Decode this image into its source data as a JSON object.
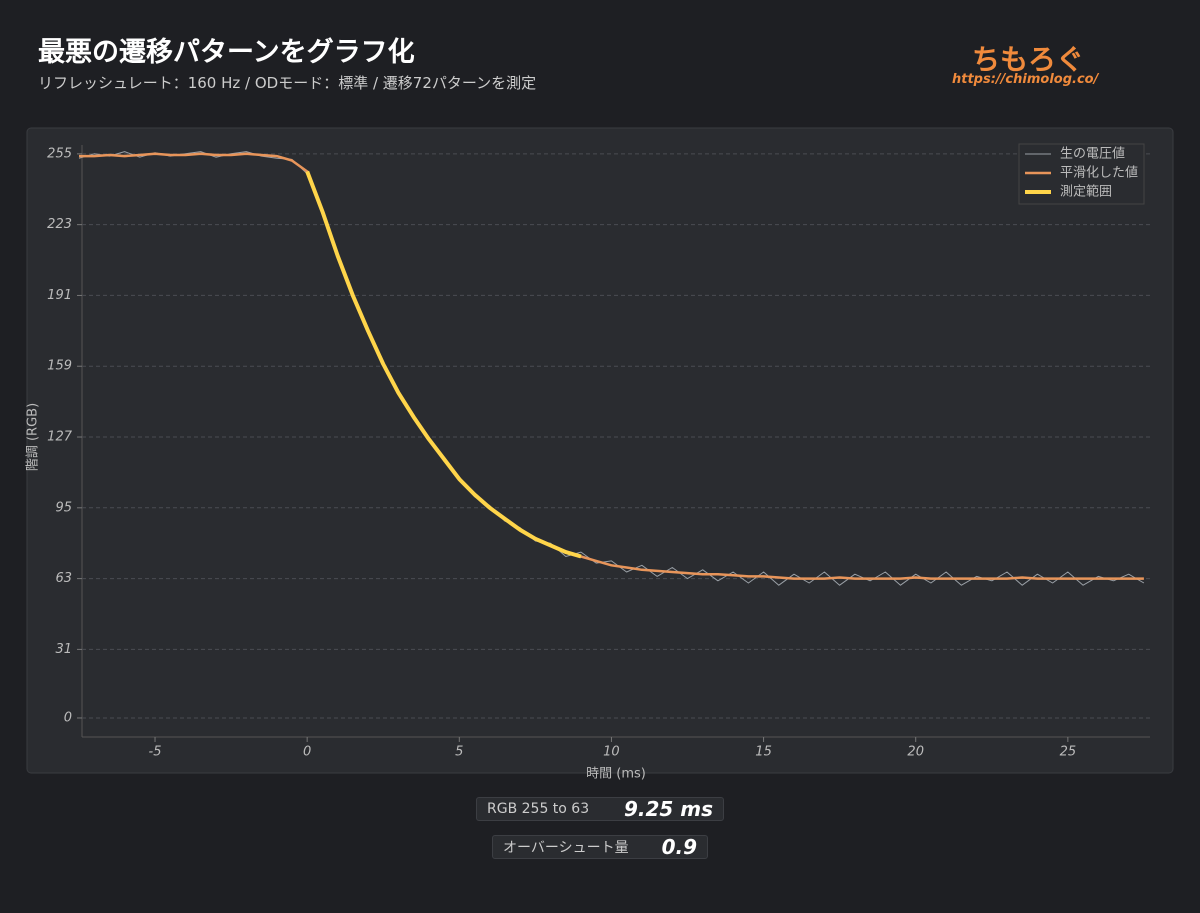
{
  "header": {
    "title": "最悪の遷移パターンをグラフ化",
    "subtitle": "リフレッシュレート：160 Hz / ODモード：標準 / 遷移72パターンを測定"
  },
  "logo": {
    "name": "ちもろぐ",
    "url": "https://chimolog.co/"
  },
  "chart_data": {
    "type": "line",
    "x_label": "時間 (ms)",
    "y_label": "階調 (RGB)",
    "x": [
      -7.5,
      -7,
      -6.5,
      -6,
      -5.5,
      -5,
      -4.5,
      -4,
      -3.5,
      -3,
      -2.5,
      -2,
      -1.5,
      -1,
      -0.5,
      0,
      0.5,
      1,
      1.5,
      2,
      2.5,
      3,
      3.5,
      4,
      4.5,
      5,
      5.5,
      6,
      6.5,
      7,
      7.5,
      8,
      8.5,
      9,
      9.5,
      10,
      10.5,
      11,
      11.5,
      12,
      12.5,
      13,
      13.5,
      14,
      14.5,
      15,
      15.5,
      16,
      16.5,
      17,
      17.5,
      18,
      18.5,
      19,
      19.5,
      20,
      20.5,
      21,
      21.5,
      22,
      22.5,
      23,
      23.5,
      24,
      24.5,
      25,
      25.5,
      26,
      26.5,
      27,
      27.5
    ],
    "series": [
      {
        "name": "生の電圧値",
        "color": "#9aa0a6",
        "width": 1,
        "values": [
          253,
          255,
          254,
          256,
          253.5,
          255.5,
          254,
          255,
          256,
          253.5,
          255,
          256,
          254,
          253,
          252.5,
          246,
          229,
          210,
          190,
          176,
          159,
          148,
          135,
          127,
          116,
          109,
          100,
          96,
          89,
          86,
          80,
          79,
          73,
          75,
          70,
          71,
          66,
          69,
          64,
          68,
          63,
          67,
          62,
          66,
          61,
          66,
          60,
          65,
          61,
          66,
          60,
          65,
          62,
          66,
          60,
          65,
          61,
          66,
          60,
          64,
          62,
          66,
          60,
          65,
          61,
          66,
          60,
          64,
          62,
          65,
          61
        ]
      },
      {
        "name": "平滑化した値",
        "color": "#e8955a",
        "width": 2.5,
        "values": [
          254,
          254,
          254.5,
          254,
          254.5,
          255,
          254.5,
          254.5,
          255,
          254.5,
          254.5,
          255,
          254.5,
          254,
          252,
          247,
          229,
          209,
          191,
          175,
          160,
          147,
          136,
          126,
          117,
          108,
          101,
          95,
          90,
          85,
          81,
          78,
          75,
          73,
          71,
          69,
          68,
          67,
          66.5,
          66,
          65.5,
          65,
          65,
          64.5,
          64,
          64,
          63.5,
          63,
          63,
          63,
          63.5,
          63,
          63,
          63,
          63,
          63.5,
          63,
          63,
          63,
          63,
          63,
          63,
          63.5,
          63,
          63,
          63,
          63,
          63,
          63,
          63,
          63
        ]
      },
      {
        "name": "測定範囲",
        "color": "#ffd54a",
        "width": 4,
        "values": [
          null,
          null,
          null,
          null,
          null,
          null,
          null,
          null,
          null,
          null,
          null,
          null,
          null,
          null,
          null,
          247,
          229,
          209,
          191,
          175,
          160,
          147,
          136,
          126,
          117,
          108,
          101,
          95,
          90,
          85,
          81,
          78,
          75,
          73,
          null,
          null,
          null,
          null,
          null,
          null,
          null,
          null,
          null,
          null,
          null,
          null,
          null,
          null,
          null,
          null,
          null,
          null,
          null,
          null,
          null,
          null,
          null,
          null,
          null,
          null,
          null,
          null,
          null,
          null,
          null,
          null,
          null,
          null,
          null,
          null,
          null
        ]
      }
    ],
    "xlim": [
      -7.4,
      27.7
    ],
    "ylim": [
      -8.6,
      259
    ],
    "xticks": [
      -5,
      0,
      5,
      10,
      15,
      20,
      25
    ],
    "yticks": [
      0,
      31,
      63,
      95,
      127,
      159,
      191,
      223,
      255
    ],
    "grid": true,
    "legend": "upper right"
  },
  "stats": [
    {
      "label": "RGB 255 to 63",
      "value": "9.25 ms"
    },
    {
      "label": "オーバーシュート量",
      "value": "0.9"
    }
  ]
}
